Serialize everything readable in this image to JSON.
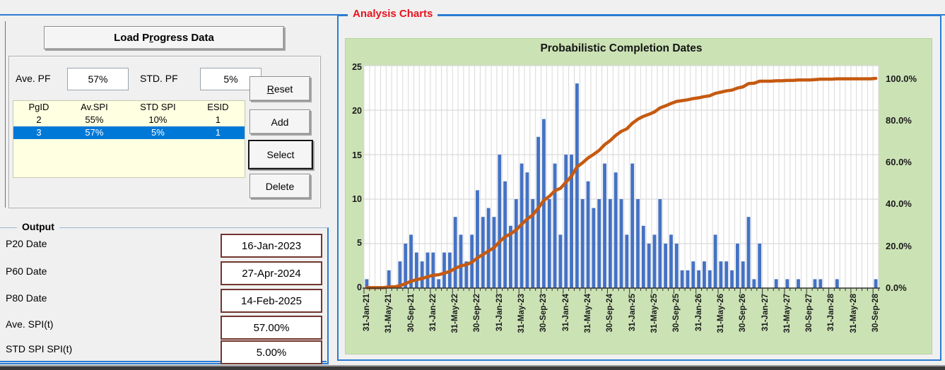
{
  "left_panel": {
    "load_button": {
      "label": "Load Progress Data",
      "accel_index": 6
    },
    "ave_pf": {
      "label": "Ave. PF",
      "value": "57%"
    },
    "std_pf": {
      "label": "STD. PF",
      "value": "5%"
    },
    "table": {
      "headers": [
        "PgID",
        "Av.SPI",
        "STD SPI",
        "ESID"
      ],
      "rows": [
        {
          "cells": [
            "2",
            "55%",
            "10%",
            "1"
          ],
          "selected": false
        },
        {
          "cells": [
            "3",
            "57%",
            "5%",
            "1"
          ],
          "selected": true
        }
      ]
    },
    "buttons": [
      {
        "id": "reset",
        "label": "Reset",
        "accel_index": 0,
        "default": false
      },
      {
        "id": "add",
        "label": "Add",
        "accel_index": -1,
        "default": false
      },
      {
        "id": "select",
        "label": "Select",
        "accel_index": -1,
        "default": true
      },
      {
        "id": "delete",
        "label": "Delete",
        "accel_index": -1,
        "default": false
      }
    ]
  },
  "output_panel": {
    "title": "Output",
    "fields": [
      {
        "label": "P20 Date",
        "value": "16-Jan-2023"
      },
      {
        "label": "P60 Date",
        "value": "27-Apr-2024"
      },
      {
        "label": "P80 Date",
        "value": "14-Feb-2025"
      },
      {
        "label": "Ave. SPI(t)",
        "value": "57.00%"
      },
      {
        "label": "STD SPI SPI(t)",
        "value": "5.00%"
      }
    ]
  },
  "analysis_panel": {
    "title": "Analysis Charts"
  },
  "chart_data": {
    "type": "bar",
    "subtype": "monthly histogram with cumulative percentage line (right axis)",
    "title": "Probabilistic Completion Dates",
    "x_note": "monthly bins from Jan-2021 to Sep-2028; a tick label every 4th month",
    "x_tick_labels": [
      "31-Jan-21",
      "31-May-21",
      "30-Sep-21",
      "31-Jan-22",
      "31-May-22",
      "30-Sep-22",
      "31-Jan-23",
      "31-May-23",
      "30-Sep-23",
      "31-Jan-24",
      "31-May-24",
      "30-Sep-24",
      "31-Jan-25",
      "31-May-25",
      "30-Sep-25",
      "31-Jan-26",
      "31-May-26",
      "30-Sep-26",
      "31-Jan-27",
      "31-May-27",
      "30-Sep-27",
      "31-Jan-28",
      "31-May-28",
      "30-Sep-28"
    ],
    "bars": [
      1,
      0,
      0,
      0,
      2,
      0,
      3,
      5,
      6,
      4,
      3,
      4,
      4,
      1,
      4,
      4,
      8,
      6,
      3,
      6,
      11,
      8,
      9,
      8,
      15,
      12,
      7,
      10,
      14,
      13,
      10,
      17,
      19,
      10,
      14,
      6,
      15,
      15,
      23,
      10,
      12,
      9,
      10,
      14,
      10,
      13,
      10,
      6,
      14,
      10,
      7,
      5,
      6,
      10,
      5,
      6,
      5,
      2,
      2,
      3,
      2,
      3,
      2,
      6,
      3,
      3,
      2,
      5,
      3,
      8,
      1,
      5,
      0,
      0,
      1,
      0,
      1,
      0,
      1,
      0,
      0,
      1,
      1,
      0,
      0,
      1,
      0,
      0,
      0,
      0,
      0,
      0,
      1
    ],
    "cumulative_line": "running sum of bars divided by total, plotted 0-100% on right axis",
    "y_left": {
      "ticks": [
        "25",
        "20",
        "15",
        "10",
        "5",
        "0"
      ],
      "min": 0,
      "max": 25
    },
    "y_right": {
      "ticks": [
        "100.0%",
        "80.0%",
        "60.0%",
        "40.0%",
        "20.0%",
        "0.0%"
      ]
    },
    "grid": "light gray vertical line per monthly bin, horizontal line every 5 units",
    "legend": "none",
    "colors": {
      "bar": "#4472c4",
      "line": "#c55a11",
      "plot_bg": "#ffffff",
      "chart_bg": "#cbe2b5",
      "gridline": "#d9d9d9",
      "axis": "#333333"
    }
  }
}
